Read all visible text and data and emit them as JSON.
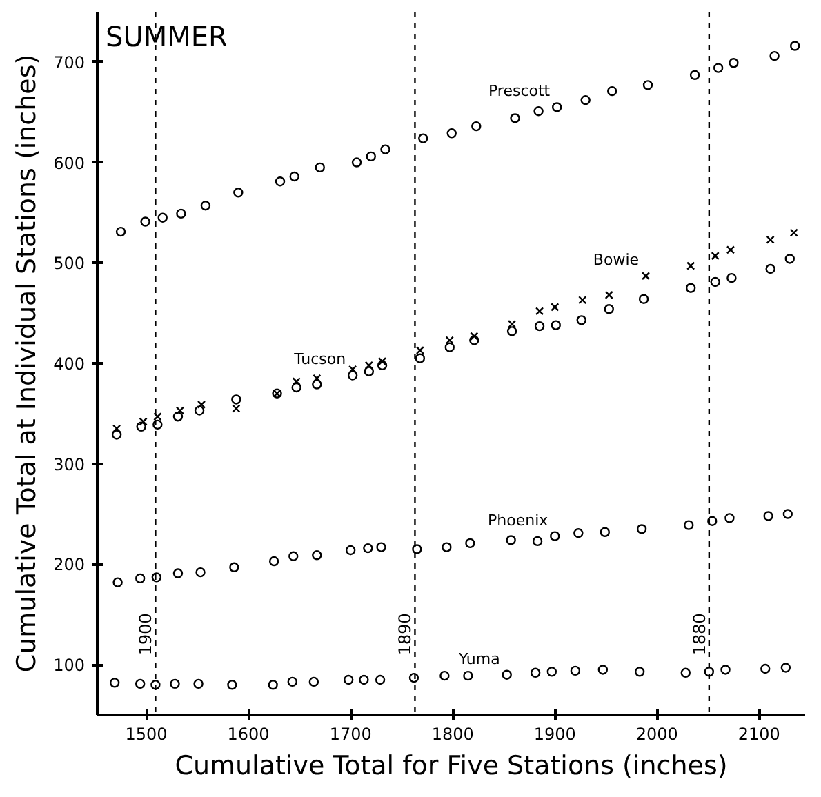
{
  "chart_data": {
    "type": "scatter",
    "title": "SUMMER",
    "xlabel": "Cumulative Total for Five Stations (inches)",
    "ylabel": "Cumulative Total at Individual Stations (inches)",
    "xlim": [
      1452,
      2145
    ],
    "ylim": [
      50,
      750
    ],
    "xticks": [
      1500,
      1600,
      1700,
      1800,
      1900,
      2000,
      2100
    ],
    "yticks": [
      100,
      200,
      300,
      400,
      500,
      600,
      700
    ],
    "grid": false,
    "series": [
      {
        "color": "#000000",
        "marker": "circle",
        "x": [
          1475,
          1499,
          1516,
          1534,
          1558,
          1590,
          1631,
          1645,
          1670,
          1706,
          1720,
          1734,
          1771,
          1799,
          1823,
          1861,
          1884,
          1902,
          1930,
          1956,
          1991,
          2037,
          2060,
          2075,
          2115,
          2135
        ],
        "values": [
          531,
          541,
          545,
          549,
          557,
          570,
          581,
          586,
          595,
          600,
          606,
          613,
          624,
          629,
          636,
          644,
          651,
          655,
          662,
          671,
          677,
          687,
          694,
          699,
          706,
          716
        ]
      },
      {
        "color": "#000000",
        "marker": "cross",
        "x": [
          1471,
          1497,
          1511,
          1533,
          1554,
          1588,
          1628,
          1647,
          1667,
          1702,
          1718,
          1731,
          1768,
          1797,
          1821,
          1858,
          1885,
          1900,
          1927,
          1953,
          1989,
          2033,
          2057,
          2072,
          2111,
          2134
        ],
        "values": [
          335,
          342,
          347,
          353,
          359,
          355,
          370,
          382,
          385,
          394,
          398,
          402,
          413,
          423,
          427,
          439,
          452,
          456,
          463,
          468,
          487,
          497,
          507,
          513,
          523,
          530
        ]
      },
      {
        "color": "#000000",
        "marker": "circle",
        "x": [
          1471,
          1495,
          1511,
          1531,
          1552,
          1588,
          1628,
          1647,
          1667,
          1702,
          1718,
          1731,
          1768,
          1797,
          1821,
          1858,
          1885,
          1901,
          1926,
          1953,
          1987,
          2033,
          2057,
          2073,
          2111,
          2130
        ],
        "values": [
          329,
          337,
          339,
          347,
          353,
          364,
          370,
          376,
          379,
          388,
          392,
          398,
          405,
          416,
          423,
          432,
          437,
          438,
          443,
          454,
          464,
          475,
          481,
          485,
          494,
          504
        ]
      },
      {
        "color": "#000000",
        "marker": "circle",
        "x": [
          1472,
          1494,
          1510,
          1531,
          1553,
          1586,
          1625,
          1644,
          1667,
          1700,
          1717,
          1730,
          1765,
          1794,
          1817,
          1857,
          1883,
          1900,
          1923,
          1949,
          1985,
          2031,
          2054,
          2071,
          2109,
          2128
        ],
        "values": [
          182,
          186,
          187,
          191,
          192,
          197,
          203,
          208,
          209,
          214,
          216,
          217,
          215,
          217,
          221,
          224,
          223,
          228,
          231,
          232,
          235,
          239,
          243,
          246,
          248,
          250
        ]
      },
      {
        "color": "#000000",
        "marker": "circle",
        "x": [
          1469,
          1494,
          1509,
          1528,
          1551,
          1584,
          1624,
          1643,
          1664,
          1698,
          1713,
          1729,
          1762,
          1792,
          1815,
          1853,
          1881,
          1897,
          1920,
          1947,
          1983,
          2028,
          2051,
          2067,
          2106,
          2126
        ],
        "values": [
          82,
          81,
          80,
          81,
          81,
          80,
          80,
          83,
          83,
          85,
          85,
          85,
          87,
          89,
          89,
          90,
          92,
          93,
          94,
          95,
          93,
          92,
          93,
          95,
          96,
          97
        ]
      }
    ],
    "ref_lines": [
      {
        "axis": "x",
        "value": 1509,
        "color": "#000000",
        "line_style": "dashed"
      },
      {
        "axis": "x",
        "value": 1763,
        "color": "#000000",
        "line_style": "dashed"
      },
      {
        "axis": "x",
        "value": 2051,
        "color": "#000000",
        "line_style": "dashed"
      }
    ],
    "annotations": [
      {
        "text": "1900",
        "x": 1509
      },
      {
        "text": "1890",
        "x": 1763
      },
      {
        "text": "1880",
        "x": 2051
      },
      {
        "text": "Prescott",
        "x": 1902,
        "y": 655
      },
      {
        "text": "Bowie",
        "x": 1989,
        "y": 487
      },
      {
        "text": "Tucson",
        "x": 1702,
        "y": 388
      },
      {
        "text": "Phoenix",
        "x": 1900,
        "y": 228
      },
      {
        "text": "Yuma",
        "x": 1853,
        "y": 90
      }
    ]
  }
}
